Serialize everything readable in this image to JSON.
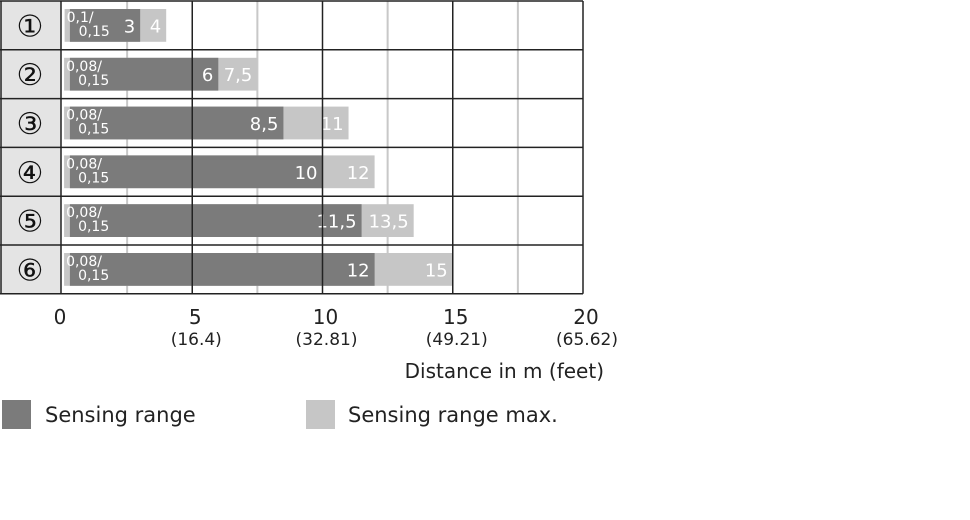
{
  "chart_data": {
    "type": "bar",
    "orientation": "horizontal",
    "stacked_overlay": true,
    "categories": [
      "①",
      "②",
      "③",
      "④",
      "⑤",
      "⑥"
    ],
    "min_labels": [
      "0,1/ 0,15",
      "0,08/ 0,15",
      "0,08/ 0,15",
      "0,08/ 0,15",
      "0,08/ 0,15",
      "0,08/ 0,15"
    ],
    "series": [
      {
        "name": "Sensing range",
        "min": [
          0.15,
          0.15,
          0.15,
          0.15,
          0.15,
          0.15
        ],
        "values": [
          3,
          6,
          8.5,
          10,
          11.5,
          12
        ],
        "labels": [
          "3",
          "6",
          "8,5",
          "10",
          "11,5",
          "12"
        ],
        "color": "#7b7b7b"
      },
      {
        "name": "Sensing range max.",
        "min": [
          0.1,
          0.08,
          0.08,
          0.08,
          0.08,
          0.08
        ],
        "values": [
          4,
          7.5,
          11,
          12,
          13.5,
          15
        ],
        "labels": [
          "4",
          "7,5",
          "11",
          "12",
          "13,5",
          "15"
        ],
        "color": "#c6c6c6"
      }
    ],
    "xlim": [
      0,
      20
    ],
    "xticks": [
      0,
      5,
      10,
      15,
      20
    ],
    "xtick_labels": [
      "0",
      "5",
      "10",
      "15",
      "20"
    ],
    "xtick_sublabels": [
      "",
      "(16.4)",
      "(32.81)",
      "(49.21)",
      "(65.62)"
    ],
    "xlabel": "Distance in m (feet)",
    "grid": true,
    "legend_placement": "bottom-left"
  }
}
